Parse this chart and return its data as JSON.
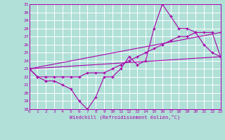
{
  "title": "",
  "xlabel": "Windchill (Refroidissement éolien,°C)",
  "ylabel": "",
  "bg_color": "#b0e0d8",
  "line_color": "#aa00aa",
  "grid_color": "#ffffff",
  "xmin": 0,
  "xmax": 23,
  "ymin": 18,
  "ymax": 31,
  "series": [
    {
      "x": [
        0,
        1,
        2,
        3,
        4,
        5,
        6,
        7,
        8,
        9,
        10,
        11,
        12,
        13,
        14,
        15,
        16,
        17,
        18,
        19,
        20,
        21,
        22,
        23
      ],
      "y": [
        23,
        22,
        21.5,
        21.5,
        21,
        20.5,
        19,
        18,
        19.5,
        22,
        22,
        23,
        24.5,
        23.5,
        24,
        28,
        31,
        29.5,
        28,
        28,
        27.5,
        26,
        25,
        24.5
      ]
    },
    {
      "x": [
        0,
        1,
        2,
        3,
        4,
        5,
        6,
        7,
        8,
        9,
        10,
        11,
        12,
        13,
        14,
        15,
        16,
        17,
        18,
        19,
        20,
        21,
        22,
        23
      ],
      "y": [
        23,
        22,
        22,
        22,
        22,
        22,
        22,
        22.5,
        22.5,
        22.5,
        23,
        23.5,
        24,
        24.5,
        25,
        25.5,
        26,
        26.5,
        27,
        27,
        27.5,
        27.5,
        27.5,
        24.5
      ]
    },
    {
      "x": [
        0,
        23
      ],
      "y": [
        23,
        27.5
      ]
    },
    {
      "x": [
        0,
        23
      ],
      "y": [
        23,
        24.5
      ]
    }
  ]
}
